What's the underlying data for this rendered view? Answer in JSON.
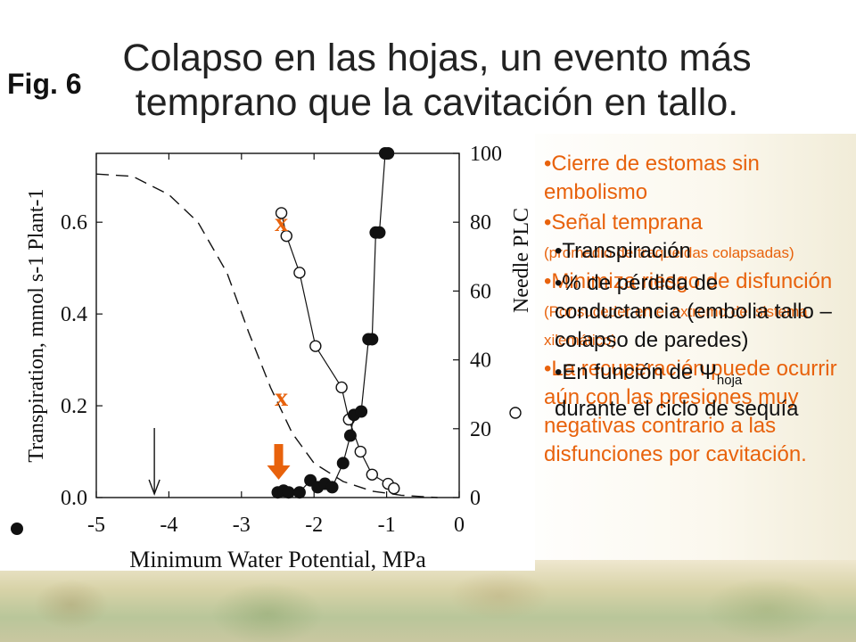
{
  "slide": {
    "title": "Colapso en las hojas, un evento más temprano que la cavitación en tallo.",
    "fig_label": "Fig. 6"
  },
  "bullets_orange": [
    {
      "text": "•Cierre de estomas sin embolismo",
      "note": ""
    },
    {
      "text": "•Señal temprana",
      "note": "(promedio de traqueidas colapsadas)"
    },
    {
      "text": "•Minimiza riesgo de disfunción",
      "note": "(Por suceder en el extremo del sistema xilemático)"
    },
    {
      "text": "•La recuperación puede ocurrir aún con las presiones muy negativas contrario a las disfunciones por cavitación.",
      "note": ""
    }
  ],
  "bullets_black": [
    {
      "text": "•Transpiración"
    },
    {
      "text": "•% de pérdida de conductancia (embolia tallo – colapso de paredes)"
    },
    {
      "text": "•En función de Ψ",
      "sub": "hoja"
    },
    {
      "text": "durante el ciclo de sequía"
    }
  ],
  "colors": {
    "accent_orange": "#e8620c",
    "text_dark": "#111111"
  },
  "chart_data": {
    "type": "scatter",
    "xlabel": "Minimum Water Potential, MPa",
    "ylabel_left": "Transpiration, mmol s-1 Plant-1",
    "ylabel_right": "Needle PLC",
    "xlim": [
      -5,
      0
    ],
    "ylim_left": [
      0,
      0.75
    ],
    "ylim_right": [
      0,
      100
    ],
    "x_ticks": [
      -5,
      -4,
      -3,
      -2,
      -1,
      0
    ],
    "y_left_ticks": [
      "0.0",
      "0.2",
      "0.4",
      "0.6"
    ],
    "y_right_ticks": [
      "0",
      "20",
      "40",
      "60",
      "80",
      "100"
    ],
    "series": [
      {
        "marker": "open-circle",
        "axis": "left",
        "points": [
          [
            -2.45,
            0.62
          ],
          [
            -2.38,
            0.57
          ],
          [
            -2.2,
            0.49
          ],
          [
            -1.98,
            0.33
          ],
          [
            -1.62,
            0.24
          ],
          [
            -1.52,
            0.17
          ],
          [
            -1.36,
            0.1
          ],
          [
            -1.2,
            0.05
          ],
          [
            -0.98,
            0.03
          ],
          [
            -0.9,
            0.02
          ]
        ]
      },
      {
        "marker": "filled-circle",
        "axis": "right",
        "points": [
          [
            -2.5,
            1.5
          ],
          [
            -2.42,
            2
          ],
          [
            -2.35,
            1.5
          ],
          [
            -2.2,
            1.5
          ],
          [
            -2.05,
            5
          ],
          [
            -1.95,
            3
          ],
          [
            -1.85,
            4
          ],
          [
            -1.75,
            3
          ],
          [
            -1.6,
            10
          ],
          [
            -1.5,
            18
          ],
          [
            -1.45,
            24
          ],
          [
            -1.35,
            25
          ],
          [
            -1.25,
            46
          ],
          [
            -1.2,
            46
          ],
          [
            -1.15,
            77
          ],
          [
            -1.1,
            77
          ],
          [
            -1.02,
            100
          ],
          [
            -0.98,
            100
          ]
        ]
      },
      {
        "marker": "dashed-line",
        "axis": "left",
        "points": [
          [
            -5,
            0.705
          ],
          [
            -4.5,
            0.7
          ],
          [
            -4.0,
            0.66
          ],
          [
            -3.6,
            0.6
          ],
          [
            -3.2,
            0.49
          ],
          [
            -2.9,
            0.36
          ],
          [
            -2.6,
            0.24
          ],
          [
            -2.3,
            0.14
          ],
          [
            -2.0,
            0.075
          ],
          [
            -1.6,
            0.035
          ],
          [
            -1.2,
            0.014
          ],
          [
            -0.8,
            0.005
          ],
          [
            -0.3,
            0.0
          ]
        ]
      }
    ],
    "annotations": [
      {
        "type": "arrow-down",
        "x": -4.2,
        "color": "#111111"
      },
      {
        "type": "arrow-down",
        "x": -2.5,
        "color": "#e8620c"
      },
      {
        "type": "text",
        "text": "x",
        "x": -2.45,
        "y_left": 0.6,
        "color": "#e8620c"
      },
      {
        "type": "text",
        "text": "x",
        "x": -2.45,
        "y_left": 0.22,
        "color": "#e8620c"
      }
    ]
  }
}
